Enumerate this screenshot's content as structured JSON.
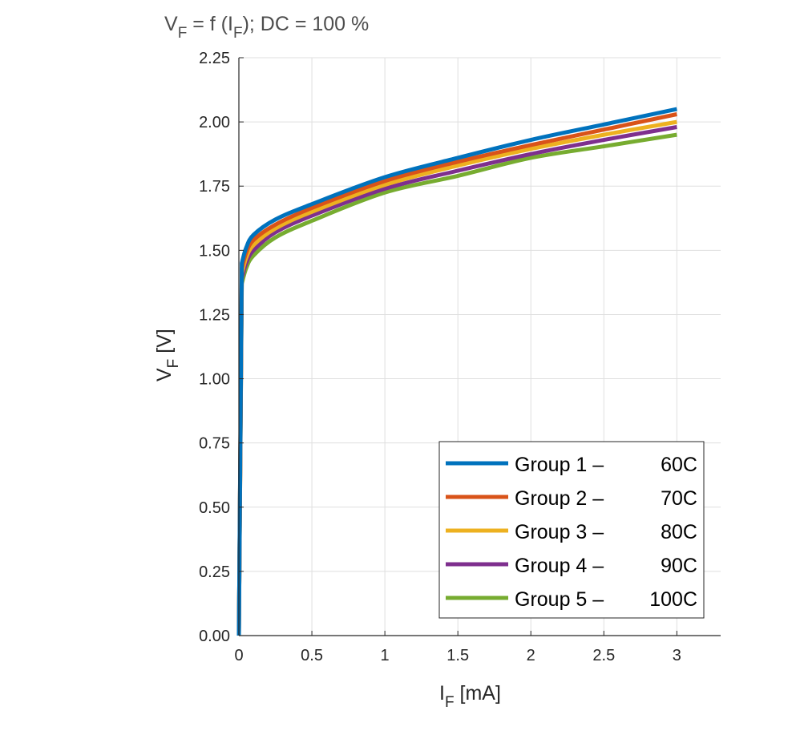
{
  "chart_data": {
    "type": "line",
    "title": {
      "main": "V",
      "main_sub": "F",
      "mid": " = f (I",
      "mid_sub": "F",
      "rest": "); DC = 100 %"
    },
    "xlabel": {
      "main": "I",
      "sub": "F",
      "rest": " [mA]"
    },
    "ylabel": {
      "main": "V",
      "sub": "F",
      "rest": " [V]"
    },
    "xlim": [
      0,
      3.3
    ],
    "ylim": [
      0,
      2.25
    ],
    "xticks": [
      0,
      0.5,
      1,
      1.5,
      2,
      2.5,
      3
    ],
    "xtick_labels": [
      "0",
      "0.5",
      "1",
      "1.5",
      "2",
      "2.5",
      "3"
    ],
    "yticks": [
      0,
      0.25,
      0.5,
      0.75,
      1.0,
      1.25,
      1.5,
      1.75,
      2.0,
      2.25
    ],
    "ytick_labels": [
      "0.00",
      "0.25",
      "0.50",
      "0.75",
      "1.00",
      "1.25",
      "1.50",
      "1.75",
      "2.00",
      "2.25"
    ],
    "grid": true,
    "legend_position": "bottom-right",
    "x": [
      0,
      0.02,
      0.05,
      0.1,
      0.25,
      0.5,
      1,
      1.5,
      2,
      2.5,
      3
    ],
    "series": [
      {
        "name": "Group 1 –   60C",
        "color": "#0072bd",
        "values": [
          0,
          1.45,
          1.51,
          1.56,
          1.62,
          1.68,
          1.785,
          1.86,
          1.93,
          1.99,
          2.05
        ]
      },
      {
        "name": "Group 2 –   70C",
        "color": "#d95319",
        "values": [
          0,
          1.43,
          1.49,
          1.54,
          1.6,
          1.665,
          1.77,
          1.845,
          1.91,
          1.97,
          2.03
        ]
      },
      {
        "name": "Group 3 –   80C",
        "color": "#edb120",
        "values": [
          0,
          1.41,
          1.47,
          1.52,
          1.585,
          1.65,
          1.755,
          1.83,
          1.895,
          1.95,
          2.0
        ]
      },
      {
        "name": "Group 4 –   90C",
        "color": "#7e2f8e",
        "values": [
          0,
          1.39,
          1.45,
          1.5,
          1.57,
          1.635,
          1.74,
          1.81,
          1.875,
          1.93,
          1.98
        ]
      },
      {
        "name": "Group 5 – 100C",
        "color": "#77ac30",
        "values": [
          0,
          1.37,
          1.43,
          1.48,
          1.55,
          1.615,
          1.725,
          1.79,
          1.86,
          1.905,
          1.95
        ]
      }
    ]
  }
}
